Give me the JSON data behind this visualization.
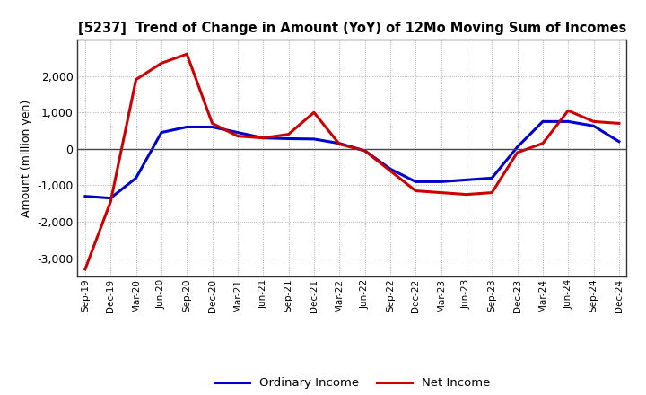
{
  "title": "[5237]  Trend of Change in Amount (YoY) of 12Mo Moving Sum of Incomes",
  "ylabel": "Amount (million yen)",
  "xlabels": [
    "Sep-19",
    "Dec-19",
    "Mar-20",
    "Jun-20",
    "Sep-20",
    "Dec-20",
    "Mar-21",
    "Jun-21",
    "Sep-21",
    "Dec-21",
    "Mar-22",
    "Jun-22",
    "Sep-22",
    "Dec-22",
    "Mar-23",
    "Jun-23",
    "Sep-23",
    "Dec-23",
    "Mar-24",
    "Jun-24",
    "Sep-24",
    "Dec-24"
  ],
  "ordinary_income": [
    -1300,
    -1350,
    -800,
    450,
    600,
    600,
    450,
    300,
    280,
    270,
    150,
    -50,
    -550,
    -900,
    -900,
    -850,
    -800,
    50,
    750,
    750,
    630,
    200
  ],
  "net_income": [
    -3300,
    -1450,
    1900,
    2350,
    2600,
    700,
    350,
    300,
    400,
    1000,
    130,
    -50,
    -600,
    -1150,
    -1200,
    -1250,
    -1200,
    -100,
    150,
    1050,
    750,
    700
  ],
  "ordinary_color": "#0000cc",
  "net_color": "#cc0000",
  "ylim": [
    -3500,
    3000
  ],
  "yticks": [
    -3000,
    -2000,
    -1000,
    0,
    1000,
    2000
  ],
  "background_color": "#ffffff",
  "grid_color": "#999999",
  "legend_ordinary": "Ordinary Income",
  "legend_net": "Net Income",
  "line_width": 2.2
}
